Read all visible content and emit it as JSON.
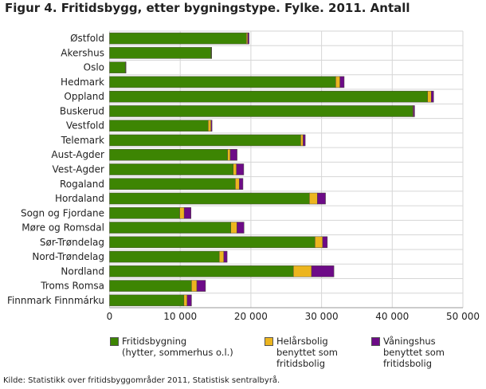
{
  "chart_data": {
    "type": "bar",
    "orientation": "horizontal",
    "stacked": true,
    "title": "Figur 4. Fritidsbygg, etter bygningstype. Fylke. 2011. Antall",
    "xlabel": "",
    "ylabel": "",
    "xlim": [
      0,
      50000
    ],
    "xticks": [
      0,
      10000,
      20000,
      30000,
      40000,
      50000
    ],
    "xtick_labels": [
      "0",
      "10 000",
      "20 000",
      "30 000",
      "40 000",
      "50 000"
    ],
    "grid": true,
    "legend_position": "bottom",
    "categories": [
      "Østfold",
      "Akershus",
      "Oslo",
      "Hedmark",
      "Oppland",
      "Buskerud",
      "Vestfold",
      "Telemark",
      "Aust-Agder",
      "Vest-Agder",
      "Rogaland",
      "Hordaland",
      "Sogn og Fjordane",
      "Møre og Romsdal",
      "Sør-Trøndelag",
      "Nord-Trøndelag",
      "Nordland",
      "Troms Romsa",
      "Finnmark Finnmárku"
    ],
    "series": [
      {
        "name": "Fritidsbygning (hytter, sommerhus o.l.)",
        "legend_lines": [
          "Fritidsbygning",
          "(hytter, sommerhus o.l.)"
        ],
        "color": "#3d8503",
        "values": [
          19370,
          14350,
          2250,
          32000,
          45000,
          42900,
          13950,
          27050,
          16700,
          17500,
          17800,
          28280,
          9930,
          17160,
          29070,
          15520,
          26010,
          11600,
          10520
        ]
      },
      {
        "name": "Helårsbolig benyttet som fritidsbolig",
        "legend_lines": [
          "Helårsbolig",
          "benyttet som",
          "fritidsbolig"
        ],
        "color": "#ecb51f",
        "values": [
          180,
          50,
          20,
          600,
          520,
          80,
          400,
          340,
          380,
          450,
          560,
          1120,
          630,
          860,
          1080,
          640,
          2570,
          750,
          450
        ]
      },
      {
        "name": "Våningshus benyttet som fritidsbolig",
        "legend_lines": [
          "Våningshus",
          "benyttet som",
          "fritidsbolig"
        ],
        "color": "#6d0b87",
        "values": [
          190,
          30,
          10,
          600,
          340,
          190,
          150,
          300,
          970,
          1040,
          520,
          1160,
          970,
          1010,
          670,
          480,
          3170,
          1230,
          630
        ]
      }
    ]
  },
  "source": "Kilde: Statistikk over fritidsbyggområder 2011, Statistisk sentralbyrå."
}
